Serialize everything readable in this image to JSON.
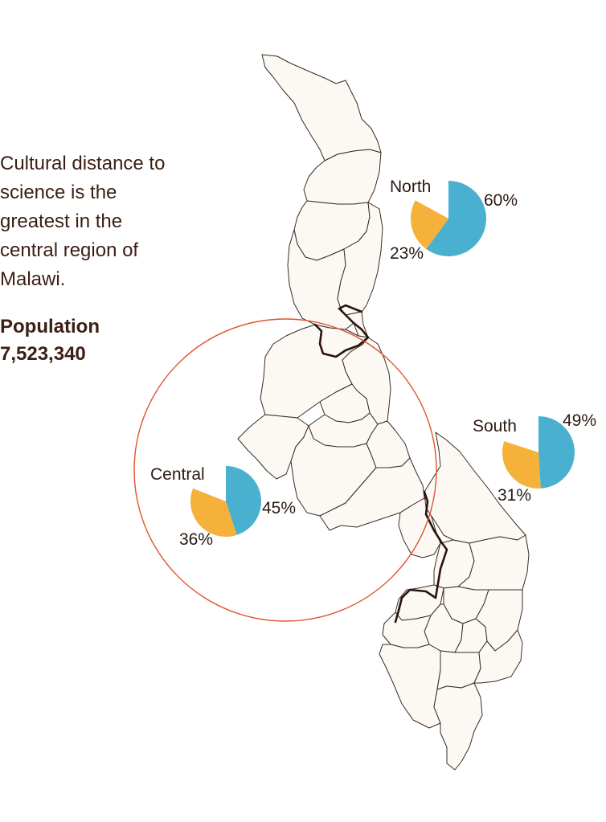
{
  "caption": "Cultural distance to science is the greatest in the central region of Malawi.",
  "population_label": "Population",
  "population_value": "7,523,340",
  "colors": {
    "blue": "#4ab0cf",
    "orange": "#f5b13a",
    "highlight_ring": "#e0522d",
    "land": "#fcf9f4",
    "text": "#3b1e14"
  },
  "regions": [
    {
      "name": "North",
      "blue_label": "60%",
      "orange_label": "23%",
      "blue": 60,
      "orange": 23
    },
    {
      "name": "Central",
      "blue_label": "45%",
      "orange_label": "36%",
      "blue": 45,
      "orange": 36
    },
    {
      "name": "South",
      "blue_label": "49%",
      "orange_label": "31%",
      "blue": 49,
      "orange": 31
    }
  ]
}
